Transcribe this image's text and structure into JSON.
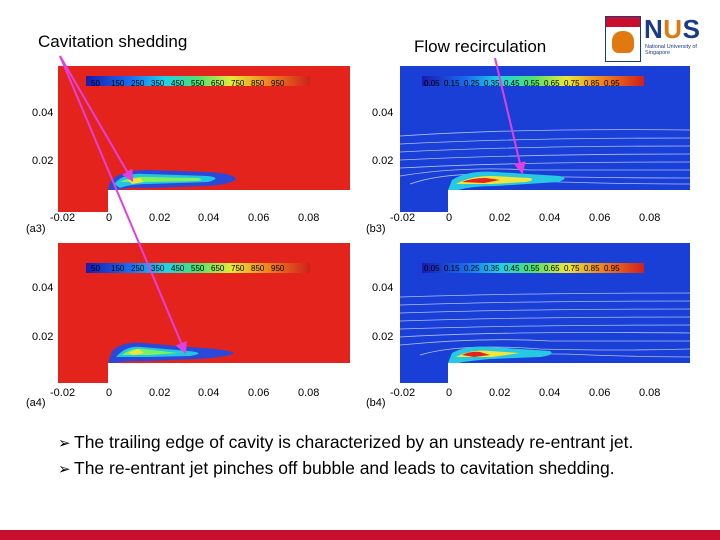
{
  "labels": {
    "left_title": "Cavitation shedding",
    "right_title": "Flow recirculation"
  },
  "logo": {
    "name_prefix": "N",
    "name_u": "U",
    "name_suffix": "S",
    "subtitle": "National University of Singapore"
  },
  "panels": {
    "a3": {
      "label": "(a3)"
    },
    "b3": {
      "label": "(b3)"
    },
    "a4": {
      "label": "(a4)"
    },
    "b4": {
      "label": "(b4)"
    }
  },
  "colorbar_left": [
    "50",
    "150",
    "250",
    "350",
    "450",
    "550",
    "650",
    "750",
    "850",
    "950"
  ],
  "colorbar_right": [
    "0.05",
    "0.15",
    "0.25",
    "0.35",
    "0.45",
    "0.55",
    "0.65",
    "0.75",
    "0.85",
    "0.95"
  ],
  "y_ticks": [
    "0.04",
    "0.02"
  ],
  "x_ticks": [
    "-0.02",
    "0",
    "0.02",
    "0.04",
    "0.06",
    "0.08"
  ],
  "bullets": [
    "The trailing edge of cavity is characterized by an unsteady re-entrant jet.",
    "The re-entrant jet pinches off  bubble and leads to cavitation shedding."
  ],
  "colors": {
    "accent_red": "#c8102e",
    "plot_red": "#e4231c",
    "plot_blue": "#1a3fd6",
    "arrow_magenta": "#e040e0"
  }
}
